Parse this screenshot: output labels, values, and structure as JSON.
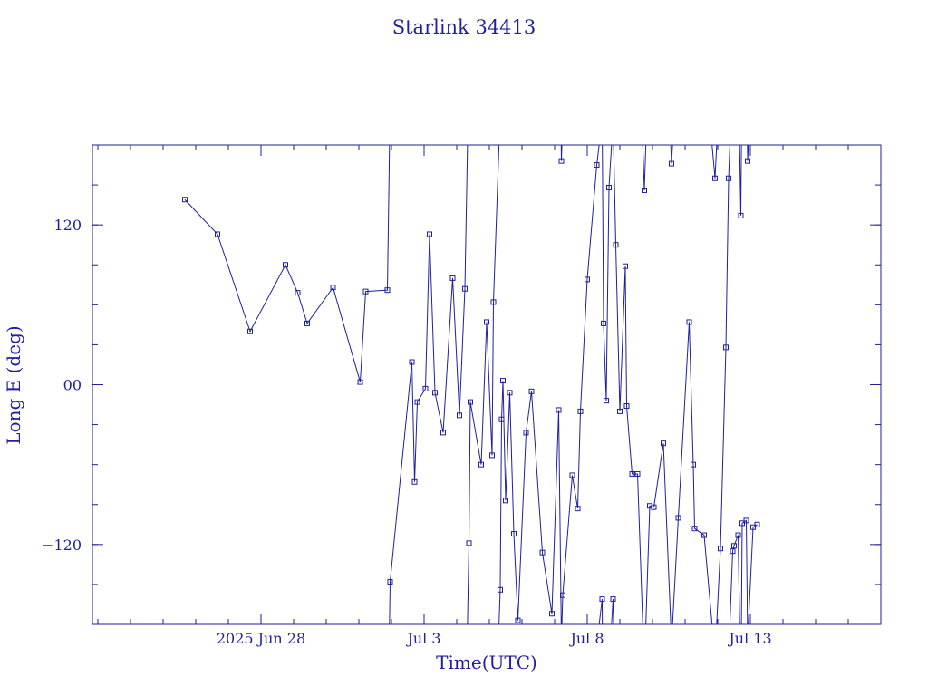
{
  "chart_data": {
    "type": "line",
    "title": "Starlink 34413",
    "xlabel": "Time(UTC)",
    "ylabel": "Long E (deg)",
    "x_axis": {
      "unit": "days",
      "range_start": "2025-06-22T20:00",
      "range_end": "2025-07-17T00:00",
      "major_tick_labels": [
        {
          "date": "2025-06-28",
          "label": "2025 Jun 28"
        },
        {
          "date": "2025-07-03",
          "label": "Jul  3"
        },
        {
          "date": "2025-07-08",
          "label": "Jul  8"
        },
        {
          "date": "2025-07-13",
          "label": "Jul 13"
        }
      ],
      "minor_tick_step_days": 1
    },
    "y_axis": {
      "ylim": [
        -180,
        180
      ],
      "major_ticks": [
        -120,
        0,
        120
      ],
      "tick_labels": [
        "−120",
        "00",
        "120"
      ],
      "minor_tick_step": 30
    },
    "grid": false,
    "series": [
      {
        "x": [
          "2025-06-25T16:00",
          "2025-06-26T16:00",
          "2025-06-27T16:00",
          "2025-06-28T18:00",
          "2025-06-29T03:00",
          "2025-06-29T10:00",
          "2025-06-30T05:00",
          "2025-07-01T01:00",
          "2025-07-01T05:00",
          "2025-07-01T21:00",
          "2025-07-01T23:00",
          "2025-07-02T15:00",
          "2025-07-02T17:00",
          "2025-07-02T19:00",
          "2025-07-03T01:00",
          "2025-07-03T04:00",
          "2025-07-03T08:00",
          "2025-07-03T14:00",
          "2025-07-03T21:00",
          "2025-07-04T02:00",
          "2025-07-04T06:00",
          "2025-07-04T09:00",
          "2025-07-04T10:00",
          "2025-07-04T18:00",
          "2025-07-04T22:00",
          "2025-07-05T02:00",
          "2025-07-05T03:00",
          "2025-07-05T08:00",
          "2025-07-05T09:00",
          "2025-07-05T10:00",
          "2025-07-05T12:00",
          "2025-07-05T15:00",
          "2025-07-05T18:00",
          "2025-07-05T21:00",
          "2025-07-06T03:00",
          "2025-07-06T07:00",
          "2025-07-06T15:00",
          "2025-07-06T22:00",
          "2025-07-07T03:00",
          "2025-07-07T05:00",
          "2025-07-07T06:00",
          "2025-07-07T13:00",
          "2025-07-07T17:00",
          "2025-07-07T19:00",
          "2025-07-08T00:00",
          "2025-07-08T07:00",
          "2025-07-08T11:00",
          "2025-07-08T12:00",
          "2025-07-08T14:00",
          "2025-07-08T16:00",
          "2025-07-08T19:00",
          "2025-07-08T21:00",
          "2025-07-09T00:00",
          "2025-07-09T04:00",
          "2025-07-09T05:00",
          "2025-07-09T09:00",
          "2025-07-09T13:00",
          "2025-07-09T18:00",
          "2025-07-09T22:00",
          "2025-07-10T01:00",
          "2025-07-10T08:00",
          "2025-07-10T14:00",
          "2025-07-10T19:00",
          "2025-07-11T03:00",
          "2025-07-11T06:00",
          "2025-07-11T07:00",
          "2025-07-11T14:00",
          "2025-07-11T22:00",
          "2025-07-12T02:00",
          "2025-07-12T06:00",
          "2025-07-12T08:00",
          "2025-07-12T11:00",
          "2025-07-12T12:00",
          "2025-07-12T15:00",
          "2025-07-12T17:00",
          "2025-07-12T18:00",
          "2025-07-12T21:00",
          "2025-07-12T22:00",
          "2025-07-13T02:00",
          "2025-07-13T05:00"
        ],
        "y": [
          139,
          113,
          40,
          90,
          69,
          46,
          73,
          2,
          70,
          71,
          -148,
          17,
          -73,
          -13,
          -3,
          113,
          -6,
          -36,
          80,
          -23,
          72,
          -119,
          -13,
          -60,
          47,
          -53,
          62,
          -154,
          -26,
          3,
          -87,
          -6,
          -112,
          -177,
          -36,
          -5,
          -126,
          -172,
          -19,
          168,
          -158,
          -68,
          -93,
          -20,
          79,
          165,
          -161,
          46,
          -12,
          148,
          -161,
          105,
          -20,
          89,
          -16,
          -67,
          -67,
          146,
          -91,
          -92,
          -44,
          166,
          -100,
          47,
          -60,
          -108,
          -113,
          155,
          -123,
          28,
          155,
          -125,
          -121,
          -113,
          127,
          -104,
          -102,
          168,
          -107,
          -105
        ],
        "omitted_note": ""
      }
    ]
  }
}
